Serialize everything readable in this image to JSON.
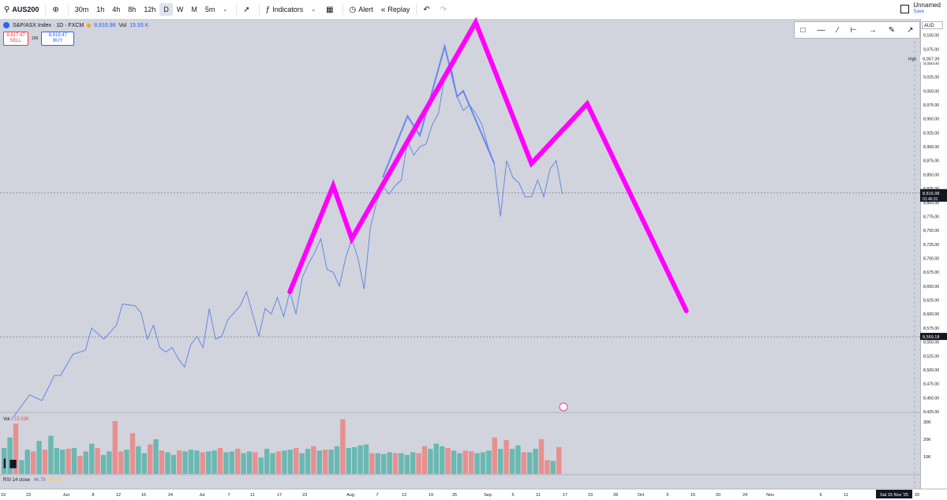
{
  "toolbar": {
    "symbol": "AUS200",
    "intervals": [
      "30m",
      "1h",
      "4h",
      "8h",
      "12h",
      "D",
      "W",
      "M",
      "5m"
    ],
    "active_interval": "D",
    "indicators_label": "Indicators",
    "alert_label": "Alert",
    "replay_label": "Replay",
    "layout_name": "Unnamed",
    "save_label": "Save"
  },
  "legend": {
    "title": "S&P/ASX Index · 1D · FXCM",
    "last": "8,816.98",
    "vol_label": "Vol",
    "vol_value": "15.93 K"
  },
  "trade": {
    "sell_price": "8,817.47",
    "sell_label": "SELL",
    "spread": "100",
    "buy_price": "8,818.47",
    "buy_label": "BUY"
  },
  "currency": "AUD",
  "panes": {
    "volume_label": "Vol",
    "volume_value": "15.93K",
    "rsi_label": "RSI 14 close",
    "rsi_value": "46.79",
    "rsi_value2": "46.79"
  },
  "markers": {
    "high_label": "High",
    "high_value": "9,057.39",
    "last_value": "8,816.98",
    "countdown": "01:46:31",
    "level_value": "8,559.18"
  },
  "date_axis": {
    "cursor_label": "Sat 15 Nov '25"
  },
  "colors": {
    "price_line": "#5b7fe6",
    "pattern": "#ff00ff",
    "volume_up": "#6ab8b2",
    "volume_down": "#e88f8f",
    "background": "#d1d4dc"
  },
  "chart_data": [
    {
      "type": "line",
      "name": "price",
      "y_ticks": [
        "9,100.00",
        "9,075.00",
        "9,050.00",
        "9,025.00",
        "9,000.00",
        "8,975.00",
        "8,950.00",
        "8,925.00",
        "8,900.00",
        "8,875.00",
        "8,850.00",
        "8,825.00",
        "8,800.00",
        "8,775.00",
        "8,750.00",
        "8,725.00",
        "8,700.00",
        "8,675.00",
        "8,650.00",
        "8,625.00",
        "8,600.00",
        "8,575.00",
        "8,550.00",
        "8,525.00",
        "8,500.00",
        "8,475.00",
        "8,450.00",
        "8,425.00"
      ],
      "ylim": [
        8425,
        9115
      ],
      "x_ticks": [
        "19",
        "23",
        "Jun",
        "8",
        "12",
        "16",
        "24",
        "Jul",
        "7",
        "11",
        "17",
        "23",
        "Aug",
        "7",
        "13",
        "19",
        "25",
        "Sep",
        "5",
        "11",
        "17",
        "23",
        "28",
        "Oct",
        "6",
        "15",
        "20",
        "24",
        "Nov",
        "6",
        "11",
        "Sat 15 Nov '25",
        "20"
      ],
      "series": [
        {
          "points": [
            [
              0,
              8410
            ],
            [
              3,
              8455
            ],
            [
              5,
              8445
            ],
            [
              7,
              8490
            ],
            [
              8,
              8490
            ],
            [
              10,
              8528
            ],
            [
              12,
              8535
            ],
            [
              13,
              8575
            ],
            [
              15,
              8555
            ],
            [
              17,
              8580
            ],
            [
              18,
              8618
            ],
            [
              20,
              8615
            ],
            [
              21,
              8602
            ],
            [
              22,
              8555
            ],
            [
              23,
              8580
            ],
            [
              24,
              8540
            ],
            [
              25,
              8532
            ],
            [
              26,
              8540
            ],
            [
              27,
              8520
            ],
            [
              28,
              8505
            ],
            [
              29,
              8545
            ],
            [
              30,
              8560
            ],
            [
              31,
              8540
            ],
            [
              32,
              8610
            ],
            [
              33,
              8555
            ],
            [
              34,
              8560
            ],
            [
              35,
              8590
            ],
            [
              37,
              8615
            ],
            [
              38,
              8640
            ],
            [
              39,
              8600
            ],
            [
              40,
              8560
            ],
            [
              41,
              8610
            ],
            [
              42,
              8600
            ],
            [
              43,
              8630
            ],
            [
              44,
              8595
            ],
            [
              45,
              8640
            ],
            [
              46,
              8600
            ],
            [
              47,
              8665
            ],
            [
              48,
              8690
            ],
            [
              49,
              8710
            ],
            [
              50,
              8735
            ],
            [
              51,
              8680
            ],
            [
              52,
              8675
            ],
            [
              53,
              8650
            ],
            [
              54,
              8700
            ],
            [
              55,
              8735
            ],
            [
              56,
              8700
            ],
            [
              57,
              8645
            ],
            [
              58,
              8755
            ],
            [
              59,
              8800
            ],
            [
              60,
              8830
            ],
            [
              61,
              8815
            ],
            [
              62,
              8830
            ],
            [
              63,
              8840
            ],
            [
              64,
              8910
            ],
            [
              65,
              8885
            ],
            [
              66,
              8900
            ],
            [
              67,
              8905
            ],
            [
              68,
              8940
            ],
            [
              69,
              8960
            ],
            [
              70,
              9025
            ],
            [
              71,
              9045
            ],
            [
              72,
              8990
            ],
            [
              73,
              8965
            ],
            [
              74,
              8975
            ],
            [
              75,
              8960
            ],
            [
              76,
              8940
            ],
            [
              77,
              8900
            ],
            [
              78,
              8870
            ],
            [
              79,
              8775
            ],
            [
              80,
              8875
            ],
            [
              81,
              8845
            ],
            [
              82,
              8835
            ],
            [
              83,
              8810
            ],
            [
              84,
              8810
            ],
            [
              85,
              8840
            ],
            [
              86,
              8810
            ],
            [
              87,
              8860
            ],
            [
              88,
              8875
            ],
            [
              89,
              8815
            ]
          ]
        },
        {
          "name": "projection",
          "points": [
            [
              60,
              8845
            ],
            [
              64,
              8955
            ],
            [
              66,
              8920
            ],
            [
              70,
              9080
            ],
            [
              72,
              8990
            ],
            [
              73,
              9000
            ],
            [
              78,
              8870
            ]
          ]
        },
        {
          "name": "pattern",
          "points": [
            [
              45,
              8640
            ],
            [
              52,
              8830
            ],
            [
              55,
              8735
            ],
            [
              75,
              9123
            ],
            [
              84,
              8870
            ],
            [
              93,
              8977
            ],
            [
              109,
              8606
            ]
          ]
        }
      ]
    },
    {
      "type": "bar",
      "name": "volume",
      "y_ticks": [
        "30K",
        "20K",
        "10K"
      ],
      "ylim": [
        0,
        35000
      ],
      "values": [
        15000,
        21000,
        29000,
        8000,
        14000,
        13000,
        19000,
        14000,
        22000,
        15000,
        14000,
        14500,
        15000,
        10500,
        13000,
        17500,
        15000,
        11000,
        13000,
        30500,
        13000,
        14000,
        23500,
        16000,
        12000,
        17000,
        20000,
        13500,
        12500,
        11000,
        13500,
        13000,
        14000,
        13500,
        12500,
        13000,
        13500,
        15000,
        12500,
        13000,
        14500,
        12000,
        13000,
        12500,
        9500,
        14500,
        12000,
        13000,
        13500,
        14000,
        15000,
        12000,
        14500,
        16000,
        13500,
        14000,
        14000,
        16000,
        31500,
        15000,
        15500,
        16500,
        17000,
        12000,
        12000,
        11500,
        12500,
        12000,
        12000,
        11000,
        12500,
        12000,
        16000,
        14500,
        17500,
        16000,
        15000,
        13500,
        12000,
        13500,
        13000,
        12000,
        12500,
        13500,
        21000,
        14500,
        19500,
        14500,
        16500,
        12500,
        12500,
        14500,
        20000,
        8000,
        7500,
        15500
      ],
      "up": [
        1,
        1,
        0,
        1,
        1,
        0,
        1,
        0,
        1,
        1,
        1,
        0,
        1,
        0,
        1,
        1,
        0,
        1,
        1,
        0,
        0,
        1,
        0,
        1,
        1,
        0,
        1,
        0,
        1,
        1,
        0,
        1,
        1,
        1,
        0,
        1,
        1,
        0,
        1,
        1,
        0,
        1,
        1,
        0,
        1,
        1,
        1,
        0,
        1,
        1,
        0,
        1,
        1,
        0,
        1,
        0,
        1,
        1,
        0,
        1,
        1,
        1,
        1,
        0,
        1,
        1,
        1,
        0,
        1,
        1,
        1,
        0,
        0,
        1,
        1,
        1,
        0,
        1,
        1,
        0,
        0,
        1,
        1,
        1,
        0,
        1,
        0,
        1,
        1,
        0,
        1,
        1,
        0,
        0,
        1,
        0
      ]
    }
  ]
}
